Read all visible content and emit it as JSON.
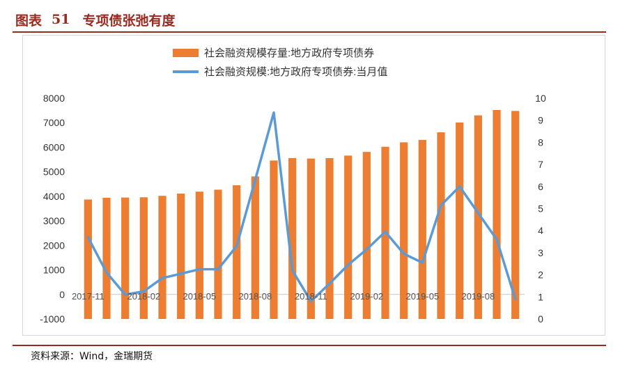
{
  "header": {
    "label": "图表",
    "number": "51",
    "title": "专项债张弛有度"
  },
  "source": "资料来源：Wind，金瑞期货",
  "colors": {
    "bar": "#ed7d31",
    "line": "#5b9bd5",
    "accent": "#9a2a1f"
  },
  "chart_data": {
    "type": "bar",
    "title": "",
    "legend_position": "top",
    "categories": [
      "2017-11",
      "2017-12",
      "2018-01",
      "2018-02",
      "2018-03",
      "2018-04",
      "2018-05",
      "2018-06",
      "2018-07",
      "2018-08",
      "2018-09",
      "2018-10",
      "2018-11",
      "2018-12",
      "2019-01",
      "2019-02",
      "2019-03",
      "2019-04",
      "2019-05",
      "2019-06",
      "2019-07",
      "2019-08",
      "2019-09",
      "2019-10"
    ],
    "x_tick_labels": [
      "2017-11",
      "2018-02",
      "2018-05",
      "2018-08",
      "2018-11",
      "2019-02",
      "2019-05",
      "2019-08"
    ],
    "y_left": {
      "min": -1000,
      "max": 8000,
      "ticks": [
        "-1000",
        "0",
        "1000",
        "2000",
        "3000",
        "4000",
        "5000",
        "6000",
        "7000",
        "8000"
      ]
    },
    "y_right": {
      "min": 0,
      "max": 10,
      "ticks": [
        "0",
        "1",
        "2",
        "3",
        "4",
        "5",
        "6",
        "7",
        "8",
        "9",
        "10"
      ]
    },
    "series": [
      {
        "name": "社会融资规模存量:地方政府专项债券",
        "type": "bar",
        "axis": "left",
        "values": [
          3870,
          3940,
          3950,
          3960,
          4020,
          4110,
          4190,
          4270,
          4450,
          4810,
          5460,
          5560,
          5540,
          5560,
          5660,
          5810,
          6020,
          6200,
          6300,
          6610,
          7010,
          7300,
          7520,
          7480
        ]
      },
      {
        "name": "社会融资规模:地方政府专项债券:当月值",
        "type": "line",
        "axis": "right",
        "values": [
          3.7,
          2.1,
          1.1,
          1.25,
          1.85,
          2.05,
          2.25,
          2.25,
          3.3,
          6.3,
          9.35,
          2.2,
          0.8,
          1.6,
          2.45,
          3.15,
          3.95,
          2.95,
          2.55,
          5.15,
          6.0,
          4.8,
          3.6,
          0.9
        ]
      }
    ]
  }
}
